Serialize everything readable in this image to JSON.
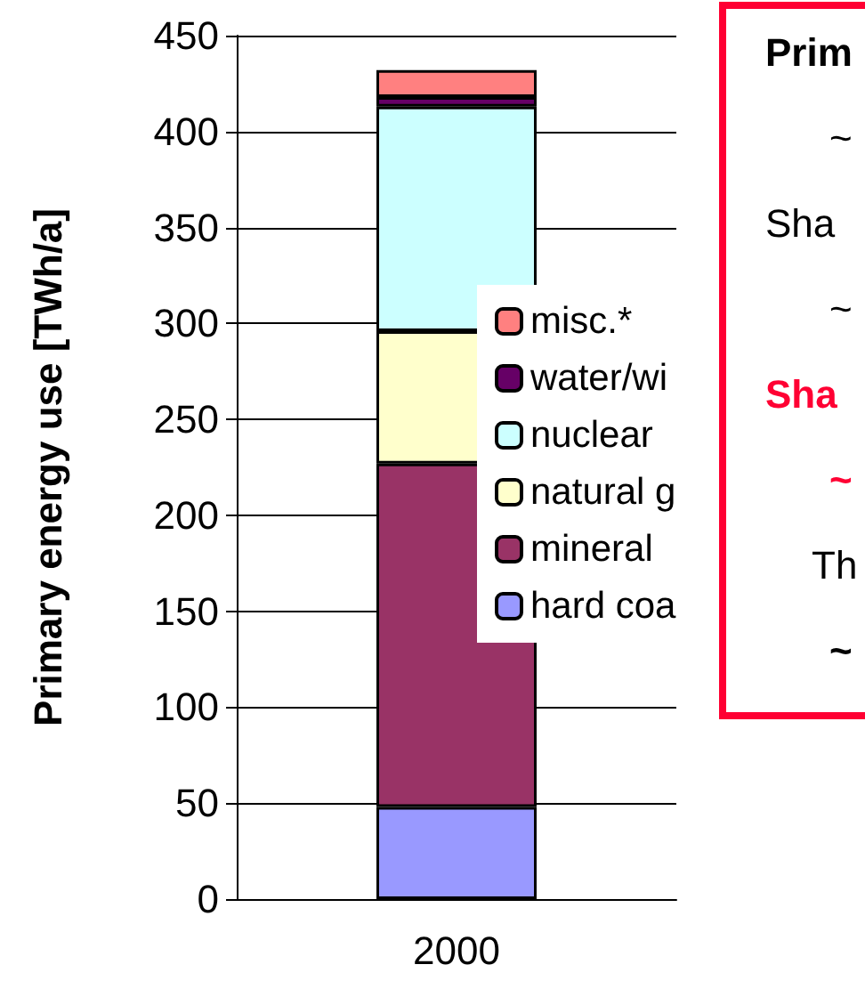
{
  "chart_data": {
    "type": "bar",
    "ylabel": "Primary energy use [TWh/a]",
    "categories": [
      "2000"
    ],
    "stacked": true,
    "series": [
      {
        "name": "hard coa",
        "color": "#9999ff",
        "values": [
          48
        ]
      },
      {
        "name": "mineral",
        "color": "#993366",
        "values": [
          179
        ]
      },
      {
        "name": "natural g",
        "color": "#ffffcc",
        "values": [
          69
        ]
      },
      {
        "name": "nuclear",
        "color": "#ccffff",
        "values": [
          117
        ]
      },
      {
        "name": "water/wi",
        "color": "#660066",
        "values": [
          5
        ]
      },
      {
        "name": "misc.*",
        "color": "#ff8080",
        "values": [
          14
        ]
      }
    ],
    "ylim": [
      0,
      450
    ],
    "yticks": [
      0,
      50,
      100,
      150,
      200,
      250,
      300,
      350,
      400,
      450
    ],
    "grid": "y",
    "legend": "right",
    "annotations": [
      "Prim",
      "~",
      "Sha",
      "~",
      "Sha",
      "~",
      "Th",
      "~"
    ]
  }
}
